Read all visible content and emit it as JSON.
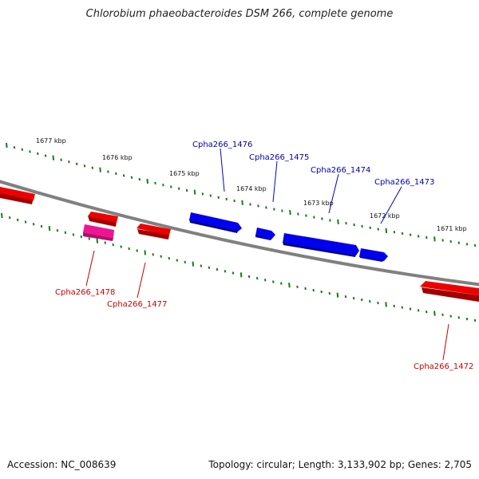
{
  "title": "Chlorobium phaeobacteroides DSM 266, complete genome",
  "footer": {
    "accession": "Accession: NC_008639",
    "topology": "Topology: circular; Length: 3,133,902 bp; Genes: 2,705"
  },
  "colors": {
    "backbone": "#808080",
    "tick": "#1a7a1a",
    "forward_gene": "#0000ee",
    "reverse_gene": "#ee0000",
    "rna_gene": "#ee1493",
    "forward_label": "#0000aa",
    "reverse_label": "#cc0000"
  },
  "position_labels": [
    "1677 kbp",
    "1676 kbp",
    "1675 kbp",
    "1674 kbp",
    "1673 kbp",
    "1672 kbp",
    "1671 kbp"
  ],
  "genes": [
    {
      "label": "Cpha266_1476",
      "strand": "forward"
    },
    {
      "label": "Cpha266_1475",
      "strand": "forward"
    },
    {
      "label": "Cpha266_1474",
      "strand": "forward"
    },
    {
      "label": "Cpha266_1473",
      "strand": "forward"
    },
    {
      "label": "Cpha266_1478",
      "strand": "reverse"
    },
    {
      "label": "Cpha266_1477",
      "strand": "reverse"
    },
    {
      "label": "Cpha266_1472",
      "strand": "reverse"
    }
  ]
}
